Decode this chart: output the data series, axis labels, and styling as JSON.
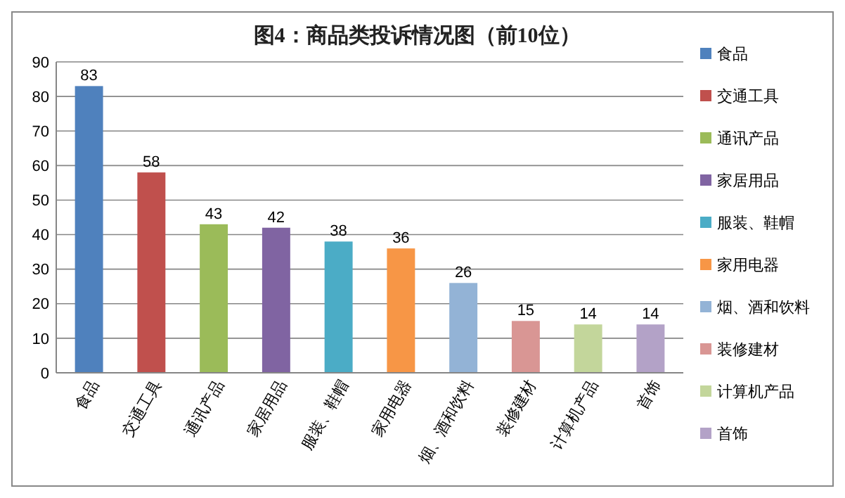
{
  "chart_data": {
    "type": "bar",
    "title": "图4：商品类投诉情况图（前10位）",
    "categories": [
      "食品",
      "交通工具",
      "通讯产品",
      "家居用品",
      "服装、鞋帽",
      "家用电器",
      "烟、酒和饮料",
      "装修建材",
      "计算机产品",
      "首饰"
    ],
    "series": [
      {
        "name": "食品",
        "color": "#4f81bd",
        "values": [
          83,
          null,
          null,
          null,
          null,
          null,
          null,
          null,
          null,
          null
        ]
      },
      {
        "name": "交通工具",
        "color": "#c0504d",
        "values": [
          null,
          58,
          null,
          null,
          null,
          null,
          null,
          null,
          null,
          null
        ]
      },
      {
        "name": "通讯产品",
        "color": "#9bbb59",
        "values": [
          null,
          null,
          43,
          null,
          null,
          null,
          null,
          null,
          null,
          null
        ]
      },
      {
        "name": "家居用品",
        "color": "#8064a2",
        "values": [
          null,
          null,
          null,
          42,
          null,
          null,
          null,
          null,
          null,
          null
        ]
      },
      {
        "name": "服装、鞋帽",
        "color": "#4bacc6",
        "values": [
          null,
          null,
          null,
          null,
          38,
          null,
          null,
          null,
          null,
          null
        ]
      },
      {
        "name": "家用电器",
        "color": "#f79646",
        "values": [
          null,
          null,
          null,
          null,
          null,
          36,
          null,
          null,
          null,
          null
        ]
      },
      {
        "name": "烟、酒和饮料",
        "color": "#93b3d6",
        "values": [
          null,
          null,
          null,
          null,
          null,
          null,
          26,
          null,
          null,
          null
        ]
      },
      {
        "name": "装修建材",
        "color": "#d99694",
        "values": [
          null,
          null,
          null,
          null,
          null,
          null,
          null,
          15,
          null,
          null
        ]
      },
      {
        "name": "计算机产品",
        "color": "#c3d69b",
        "values": [
          null,
          null,
          null,
          null,
          null,
          null,
          null,
          null,
          14,
          null
        ]
      },
      {
        "name": "首饰",
        "color": "#b3a2c7",
        "values": [
          null,
          null,
          null,
          null,
          null,
          null,
          null,
          null,
          null,
          14
        ]
      }
    ],
    "ylim": [
      0,
      90
    ],
    "yticks": [
      0,
      10,
      20,
      30,
      40,
      50,
      60,
      70,
      80,
      90
    ],
    "grid": "y",
    "data_labels": true,
    "legend": "right"
  }
}
